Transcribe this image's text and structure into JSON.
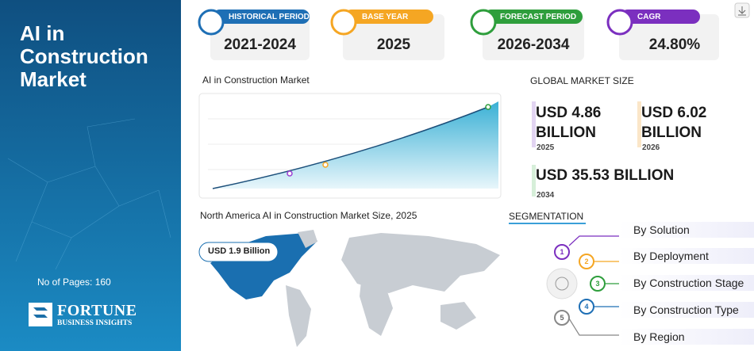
{
  "sidebar": {
    "title": "AI in Construction Market",
    "pages": "No of Pages: 160",
    "logo_main": "FORTUNE",
    "logo_sub": "BUSINESS INSIGHTS"
  },
  "cards": [
    {
      "label": "HISTORICAL PERIOD",
      "value": "2021-2024"
    },
    {
      "label": "BASE YEAR",
      "value": "2025"
    },
    {
      "label": "FORECAST PERIOD",
      "value": "2026-2034"
    },
    {
      "label": "CAGR",
      "value": "24.80%"
    }
  ],
  "trend_chart": {
    "title": "AI in Construction Market"
  },
  "market_size": {
    "title": "GLOBAL MARKET SIZE",
    "items": [
      {
        "value": "USD 4.86 BILLION",
        "year": "2025"
      },
      {
        "value": "USD 6.02 BILLION",
        "year": "2026"
      },
      {
        "value": "USD 35.53 BILLION",
        "year": "2034"
      }
    ]
  },
  "regional": {
    "title": "North America AI in Construction Market Size, 2025",
    "value": "USD 1.9 Billion"
  },
  "segmentation": {
    "title": "SEGMENTATION",
    "items": [
      {
        "number": "1",
        "label": "By Solution"
      },
      {
        "number": "2",
        "label": "By Deployment"
      },
      {
        "number": "3",
        "label": "By Construction Stage"
      },
      {
        "number": "4",
        "label": "By Construction Type"
      },
      {
        "number": "5",
        "label": "By Region"
      }
    ]
  }
}
